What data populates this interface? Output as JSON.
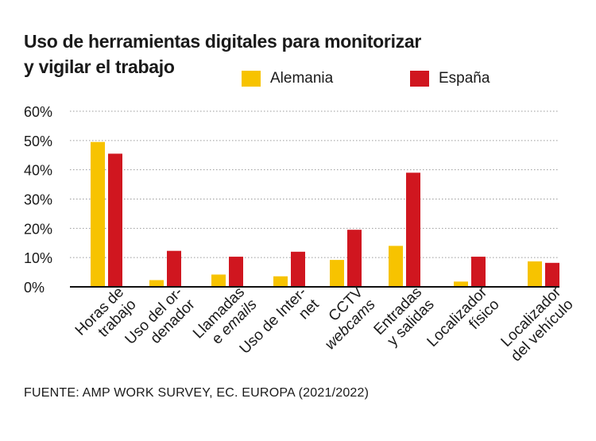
{
  "title_line1": "Uso de herramientas digitales para monitorizar",
  "title_line2": "y vigilar el trabajo",
  "source": "FUENTE: AMP WORK SURVEY, EC. EUROPA (2021/2022)",
  "colors": {
    "alemania": "#f7c300",
    "espana": "#d0161f",
    "grid": "#9a9a9a",
    "axis": "#111111"
  },
  "chart_data": {
    "type": "bar",
    "title": "Uso de herramientas digitales para monitorizar y vigilar el trabajo",
    "xlabel": "",
    "ylabel": "",
    "ylim": [
      0,
      60
    ],
    "yticks": [
      0,
      10,
      20,
      30,
      40,
      50,
      60
    ],
    "ytick_labels": [
      "0%",
      "10%",
      "20%",
      "30%",
      "40%",
      "50%",
      "60%"
    ],
    "grid": true,
    "legend_position": "top",
    "categories": [
      [
        "Horas de",
        "trabajo"
      ],
      [
        "Uso del or-",
        "denador"
      ],
      [
        "Llamadas",
        "e |emails|"
      ],
      [
        "Uso de Inter-",
        "net"
      ],
      [
        "CCTV",
        "|webcams|"
      ],
      [
        "Entradas",
        "y salidas"
      ],
      [
        "Localizador",
        "físico"
      ],
      [
        "Localizador",
        "del vehículo"
      ]
    ],
    "series": [
      {
        "name": "Alemania",
        "values": [
          49.5,
          2.3,
          4.2,
          3.6,
          9.2,
          14.0,
          1.8,
          8.7
        ]
      },
      {
        "name": "España",
        "values": [
          45.5,
          12.3,
          10.3,
          12.0,
          19.5,
          39.0,
          10.3,
          8.2
        ]
      }
    ]
  }
}
